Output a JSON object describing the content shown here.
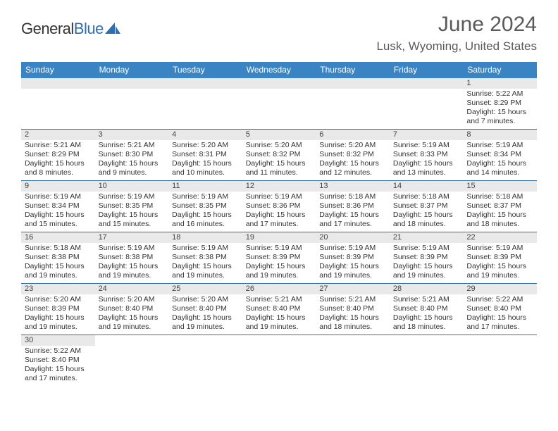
{
  "logo": {
    "text_a": "General",
    "text_b": "Blue"
  },
  "header": {
    "month_year": "June 2024",
    "location": "Lusk, Wyoming, United States"
  },
  "styling": {
    "header_bg": "#3b84c4",
    "header_text": "#ffffff",
    "daynum_bg": "#e9e9e9",
    "border_color": "#2f6fb0",
    "body_text": "#333333",
    "title_color": "#5a5a5a",
    "month_fontsize": 30,
    "location_fontsize": 17,
    "dow_fontsize": 12,
    "cell_fontsize": 10.5
  },
  "days_of_week": [
    "Sunday",
    "Monday",
    "Tuesday",
    "Wednesday",
    "Thursday",
    "Friday",
    "Saturday"
  ],
  "weeks": [
    [
      {
        "n": "",
        "sr": "",
        "ss": "",
        "dl": ""
      },
      {
        "n": "",
        "sr": "",
        "ss": "",
        "dl": ""
      },
      {
        "n": "",
        "sr": "",
        "ss": "",
        "dl": ""
      },
      {
        "n": "",
        "sr": "",
        "ss": "",
        "dl": ""
      },
      {
        "n": "",
        "sr": "",
        "ss": "",
        "dl": ""
      },
      {
        "n": "",
        "sr": "",
        "ss": "",
        "dl": ""
      },
      {
        "n": "1",
        "sr": "Sunrise: 5:22 AM",
        "ss": "Sunset: 8:29 PM",
        "dl": "Daylight: 15 hours and 7 minutes."
      }
    ],
    [
      {
        "n": "2",
        "sr": "Sunrise: 5:21 AM",
        "ss": "Sunset: 8:29 PM",
        "dl": "Daylight: 15 hours and 8 minutes."
      },
      {
        "n": "3",
        "sr": "Sunrise: 5:21 AM",
        "ss": "Sunset: 8:30 PM",
        "dl": "Daylight: 15 hours and 9 minutes."
      },
      {
        "n": "4",
        "sr": "Sunrise: 5:20 AM",
        "ss": "Sunset: 8:31 PM",
        "dl": "Daylight: 15 hours and 10 minutes."
      },
      {
        "n": "5",
        "sr": "Sunrise: 5:20 AM",
        "ss": "Sunset: 8:32 PM",
        "dl": "Daylight: 15 hours and 11 minutes."
      },
      {
        "n": "6",
        "sr": "Sunrise: 5:20 AM",
        "ss": "Sunset: 8:32 PM",
        "dl": "Daylight: 15 hours and 12 minutes."
      },
      {
        "n": "7",
        "sr": "Sunrise: 5:19 AM",
        "ss": "Sunset: 8:33 PM",
        "dl": "Daylight: 15 hours and 13 minutes."
      },
      {
        "n": "8",
        "sr": "Sunrise: 5:19 AM",
        "ss": "Sunset: 8:34 PM",
        "dl": "Daylight: 15 hours and 14 minutes."
      }
    ],
    [
      {
        "n": "9",
        "sr": "Sunrise: 5:19 AM",
        "ss": "Sunset: 8:34 PM",
        "dl": "Daylight: 15 hours and 15 minutes."
      },
      {
        "n": "10",
        "sr": "Sunrise: 5:19 AM",
        "ss": "Sunset: 8:35 PM",
        "dl": "Daylight: 15 hours and 15 minutes."
      },
      {
        "n": "11",
        "sr": "Sunrise: 5:19 AM",
        "ss": "Sunset: 8:35 PM",
        "dl": "Daylight: 15 hours and 16 minutes."
      },
      {
        "n": "12",
        "sr": "Sunrise: 5:19 AM",
        "ss": "Sunset: 8:36 PM",
        "dl": "Daylight: 15 hours and 17 minutes."
      },
      {
        "n": "13",
        "sr": "Sunrise: 5:18 AM",
        "ss": "Sunset: 8:36 PM",
        "dl": "Daylight: 15 hours and 17 minutes."
      },
      {
        "n": "14",
        "sr": "Sunrise: 5:18 AM",
        "ss": "Sunset: 8:37 PM",
        "dl": "Daylight: 15 hours and 18 minutes."
      },
      {
        "n": "15",
        "sr": "Sunrise: 5:18 AM",
        "ss": "Sunset: 8:37 PM",
        "dl": "Daylight: 15 hours and 18 minutes."
      }
    ],
    [
      {
        "n": "16",
        "sr": "Sunrise: 5:18 AM",
        "ss": "Sunset: 8:38 PM",
        "dl": "Daylight: 15 hours and 19 minutes."
      },
      {
        "n": "17",
        "sr": "Sunrise: 5:19 AM",
        "ss": "Sunset: 8:38 PM",
        "dl": "Daylight: 15 hours and 19 minutes."
      },
      {
        "n": "18",
        "sr": "Sunrise: 5:19 AM",
        "ss": "Sunset: 8:38 PM",
        "dl": "Daylight: 15 hours and 19 minutes."
      },
      {
        "n": "19",
        "sr": "Sunrise: 5:19 AM",
        "ss": "Sunset: 8:39 PM",
        "dl": "Daylight: 15 hours and 19 minutes."
      },
      {
        "n": "20",
        "sr": "Sunrise: 5:19 AM",
        "ss": "Sunset: 8:39 PM",
        "dl": "Daylight: 15 hours and 19 minutes."
      },
      {
        "n": "21",
        "sr": "Sunrise: 5:19 AM",
        "ss": "Sunset: 8:39 PM",
        "dl": "Daylight: 15 hours and 19 minutes."
      },
      {
        "n": "22",
        "sr": "Sunrise: 5:19 AM",
        "ss": "Sunset: 8:39 PM",
        "dl": "Daylight: 15 hours and 19 minutes."
      }
    ],
    [
      {
        "n": "23",
        "sr": "Sunrise: 5:20 AM",
        "ss": "Sunset: 8:39 PM",
        "dl": "Daylight: 15 hours and 19 minutes."
      },
      {
        "n": "24",
        "sr": "Sunrise: 5:20 AM",
        "ss": "Sunset: 8:40 PM",
        "dl": "Daylight: 15 hours and 19 minutes."
      },
      {
        "n": "25",
        "sr": "Sunrise: 5:20 AM",
        "ss": "Sunset: 8:40 PM",
        "dl": "Daylight: 15 hours and 19 minutes."
      },
      {
        "n": "26",
        "sr": "Sunrise: 5:21 AM",
        "ss": "Sunset: 8:40 PM",
        "dl": "Daylight: 15 hours and 19 minutes."
      },
      {
        "n": "27",
        "sr": "Sunrise: 5:21 AM",
        "ss": "Sunset: 8:40 PM",
        "dl": "Daylight: 15 hours and 18 minutes."
      },
      {
        "n": "28",
        "sr": "Sunrise: 5:21 AM",
        "ss": "Sunset: 8:40 PM",
        "dl": "Daylight: 15 hours and 18 minutes."
      },
      {
        "n": "29",
        "sr": "Sunrise: 5:22 AM",
        "ss": "Sunset: 8:40 PM",
        "dl": "Daylight: 15 hours and 17 minutes."
      }
    ],
    [
      {
        "n": "30",
        "sr": "Sunrise: 5:22 AM",
        "ss": "Sunset: 8:40 PM",
        "dl": "Daylight: 15 hours and 17 minutes."
      },
      {
        "n": "",
        "sr": "",
        "ss": "",
        "dl": ""
      },
      {
        "n": "",
        "sr": "",
        "ss": "",
        "dl": ""
      },
      {
        "n": "",
        "sr": "",
        "ss": "",
        "dl": ""
      },
      {
        "n": "",
        "sr": "",
        "ss": "",
        "dl": ""
      },
      {
        "n": "",
        "sr": "",
        "ss": "",
        "dl": ""
      },
      {
        "n": "",
        "sr": "",
        "ss": "",
        "dl": ""
      }
    ]
  ]
}
